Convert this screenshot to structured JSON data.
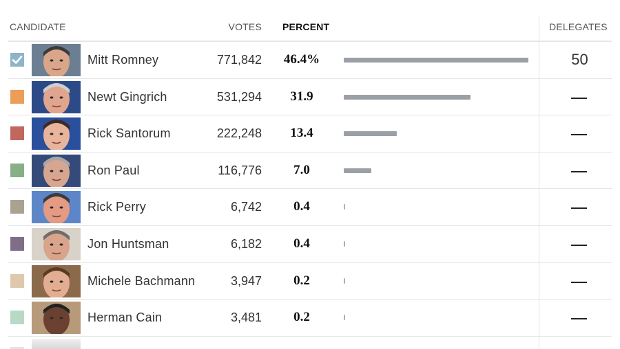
{
  "header": {
    "candidate": "CANDIDATE",
    "votes": "VOTES",
    "percent": "PERCENT",
    "delegates": "DELEGATES"
  },
  "chart_data": {
    "type": "bar",
    "categories": [
      "Mitt Romney",
      "Newt Gingrich",
      "Rick Santorum",
      "Ron Paul",
      "Rick Perry",
      "Jon Huntsman",
      "Michele Bachmann",
      "Herman Cain"
    ],
    "series": [
      {
        "values": [
          46.4,
          31.9,
          13.4,
          7.0,
          0.4,
          0.4,
          0.2,
          0.2
        ]
      }
    ],
    "votes": [
      771842,
      531294,
      222248,
      116776,
      6742,
      6182,
      3947,
      3481
    ],
    "xlim": [
      0,
      46.4
    ]
  },
  "rows": [
    {
      "name": "Mitt Romney",
      "votes": "771,842",
      "percent": "46.4%",
      "pct_value": 46.4,
      "delegates": "50",
      "color": "#8fb4c8",
      "winner": true,
      "skin": "#d9a68a",
      "hair": "#3a3a3a",
      "bg": "#6c7f92"
    },
    {
      "name": "Newt Gingrich",
      "votes": "531,294",
      "percent": "31.9",
      "pct_value": 31.9,
      "delegates": "—",
      "color": "#ec9d58",
      "winner": false,
      "skin": "#e0a58e",
      "hair": "#cfcfcf",
      "bg": "#2c4a88"
    },
    {
      "name": "Rick Santorum",
      "votes": "222,248",
      "percent": "13.4",
      "pct_value": 13.4,
      "delegates": "—",
      "color": "#c2675e",
      "winner": false,
      "skin": "#e8b49b",
      "hair": "#3b2b24",
      "bg": "#2a4f9c"
    },
    {
      "name": "Ron Paul",
      "votes": "116,776",
      "percent": "7.0",
      "pct_value": 7.0,
      "delegates": "—",
      "color": "#87b086",
      "winner": false,
      "skin": "#d7a690",
      "hair": "#a7a7a7",
      "bg": "#344a78"
    },
    {
      "name": "Rick Perry",
      "votes": "6,742",
      "percent": "0.4",
      "pct_value": 0.4,
      "delegates": "—",
      "color": "#aaa290",
      "winner": false,
      "skin": "#e39b84",
      "hair": "#3b3b3b",
      "bg": "#5d86c8"
    },
    {
      "name": "Jon Huntsman",
      "votes": "6,182",
      "percent": "0.4",
      "pct_value": 0.4,
      "delegates": "—",
      "color": "#7f6f86",
      "winner": false,
      "skin": "#d8a48c",
      "hair": "#6d6d6d",
      "bg": "#d9d2c8"
    },
    {
      "name": "Michele Bachmann",
      "votes": "3,947",
      "percent": "0.2",
      "pct_value": 0.2,
      "delegates": "—",
      "color": "#dfc9ad",
      "winner": false,
      "skin": "#e2ad90",
      "hair": "#5a3a22",
      "bg": "#8a6a4a"
    },
    {
      "name": "Herman Cain",
      "votes": "3,481",
      "percent": "0.2",
      "pct_value": 0.2,
      "delegates": "—",
      "color": "#b7d9c6",
      "winner": false,
      "skin": "#6a4030",
      "hair": "#222222",
      "bg": "#b69a7a"
    }
  ],
  "colors": {
    "bar": "#9aa0a6",
    "divider": "#e2e2e2",
    "check": "#8fb4c8"
  },
  "icons": {
    "check": "checkmark-icon"
  }
}
